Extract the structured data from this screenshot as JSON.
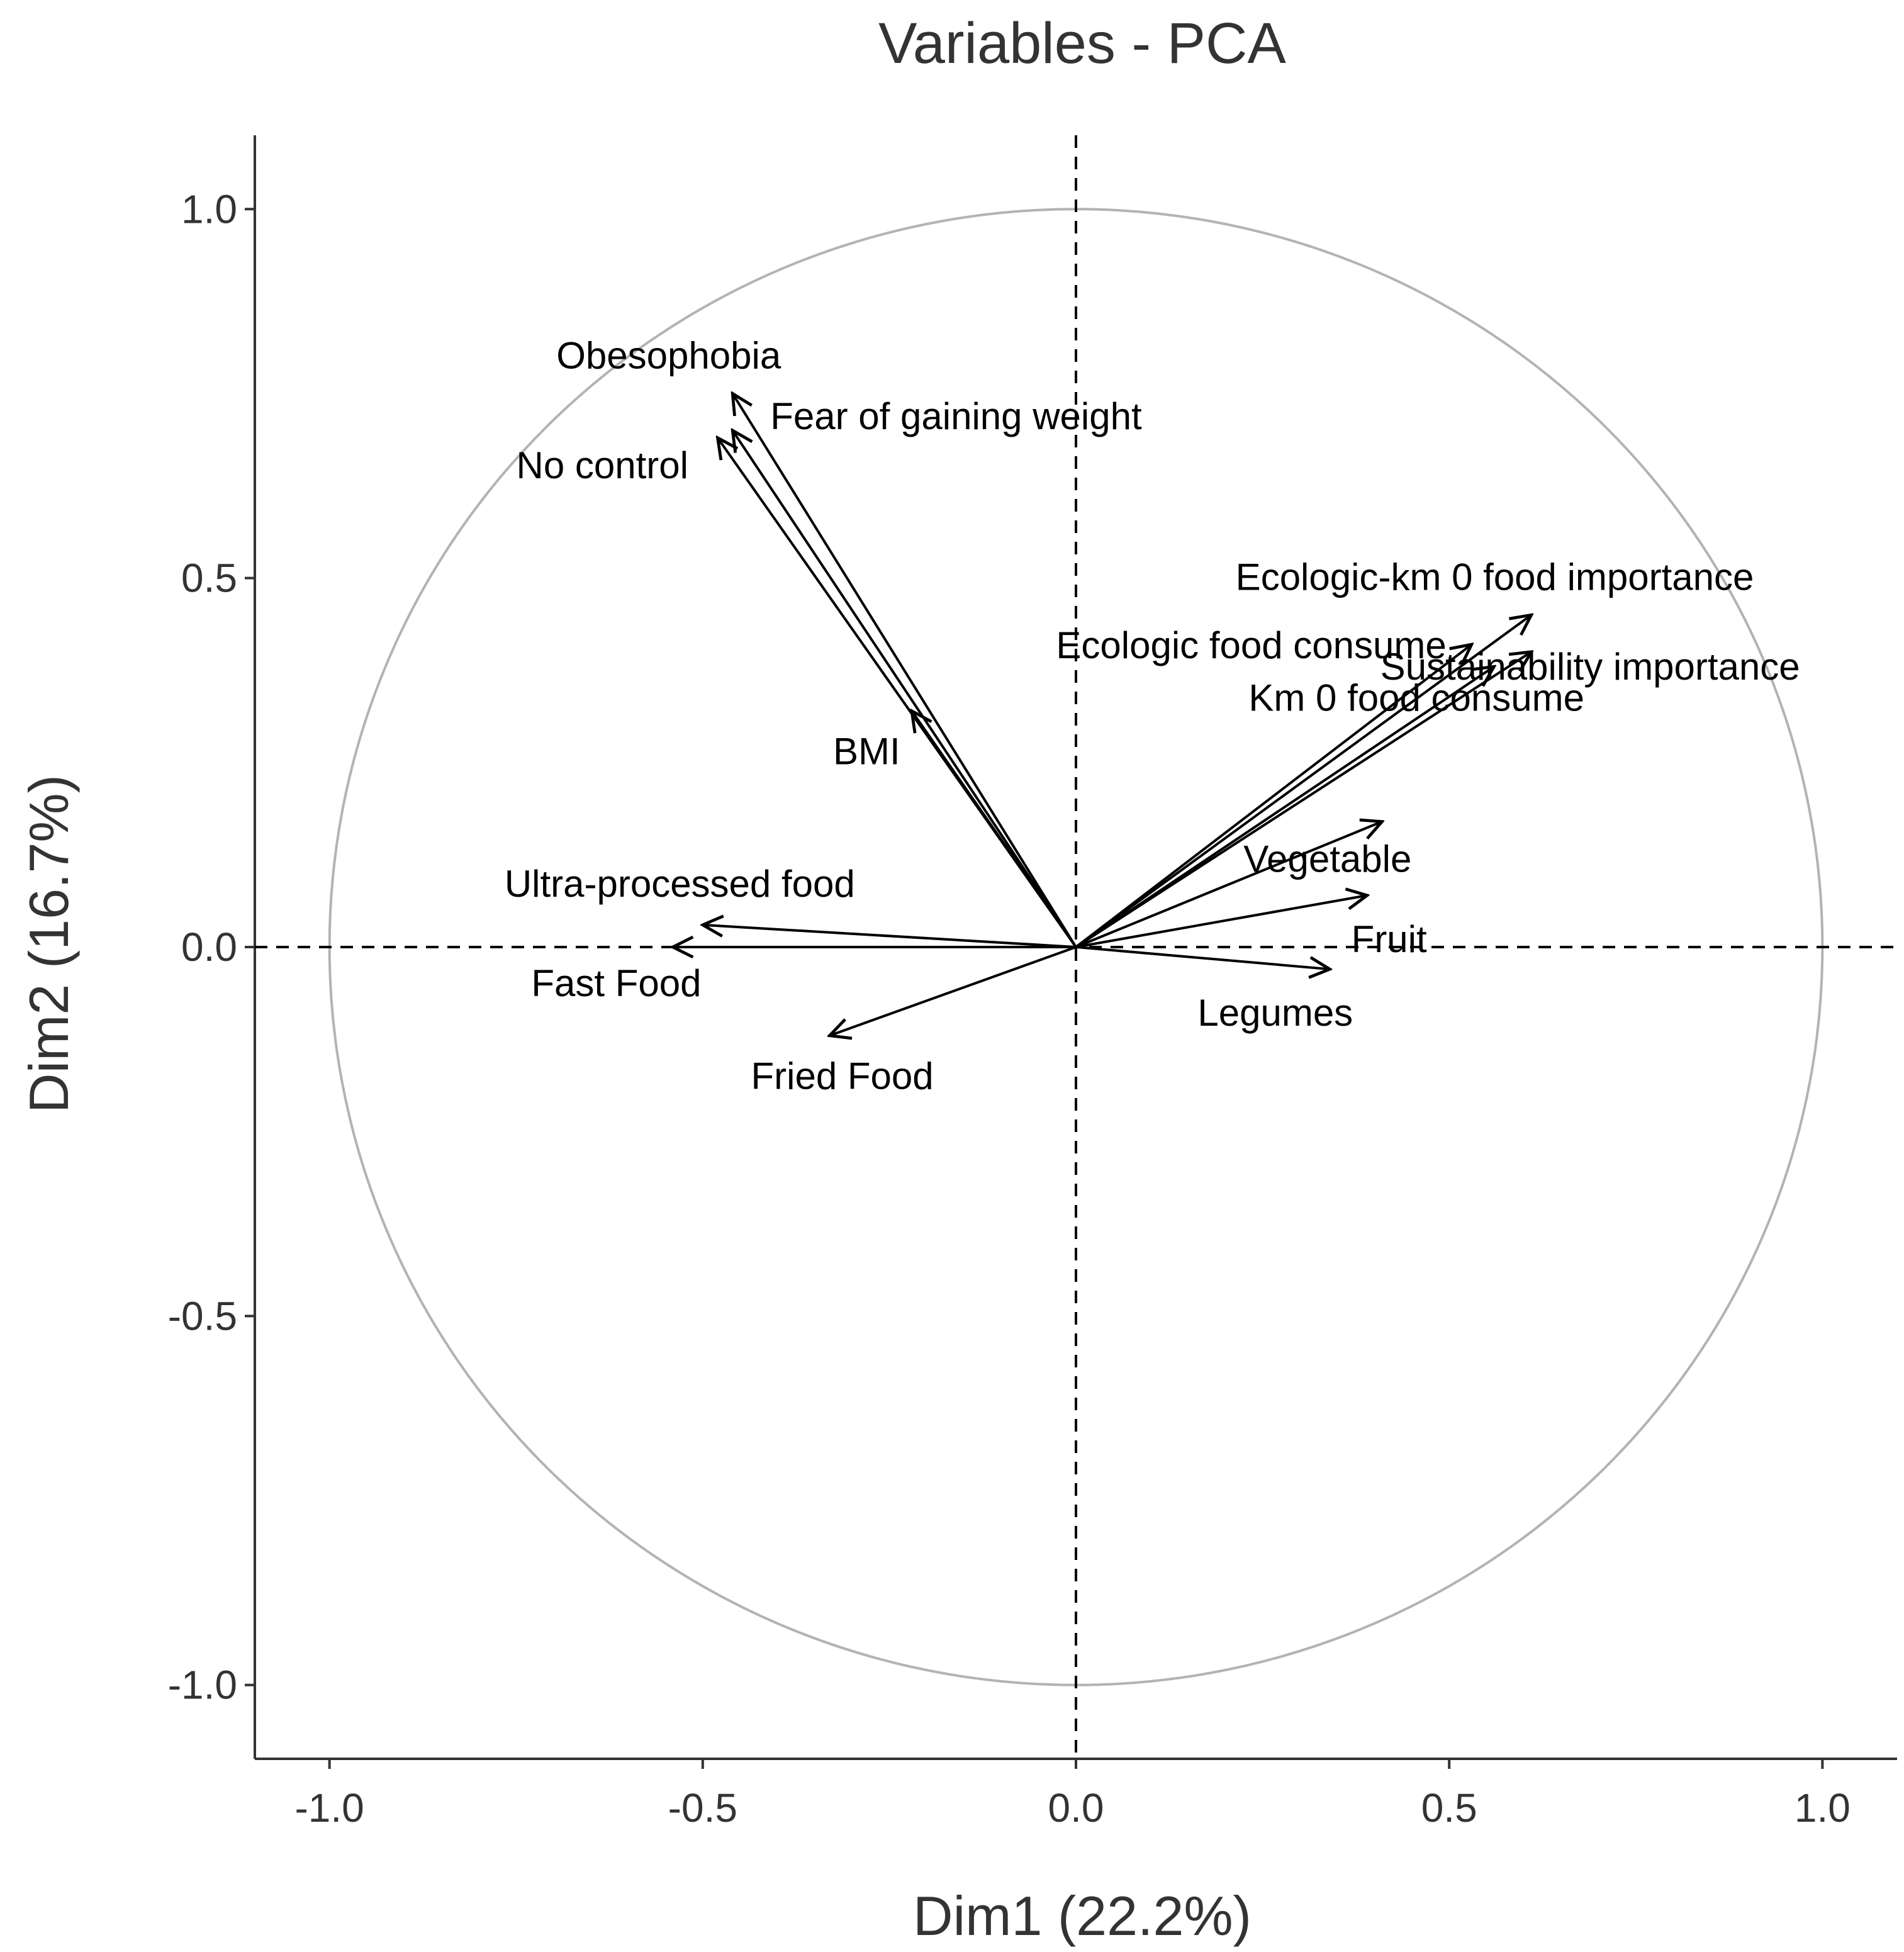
{
  "colors": {
    "background": "#ffffff",
    "circle": "#b3b3b3",
    "arrows": "#000000",
    "text": "#333333"
  },
  "chart_data": {
    "type": "pca-variable-correlation-circle",
    "title": "Variables - PCA",
    "xlabel": "Dim1 (22.2%)",
    "ylabel": "Dim2 (16.7%)",
    "xlim": [
      -1.1,
      1.1
    ],
    "ylim": [
      -1.1,
      1.1
    ],
    "xticks": [
      -1.0,
      -0.5,
      0.0,
      0.5,
      1.0
    ],
    "yticks": [
      -1.0,
      -0.5,
      0.0,
      0.5,
      1.0
    ],
    "xtick_labels": [
      "-1.0",
      "-0.5",
      "0.0",
      "0.5",
      "1.0"
    ],
    "ytick_labels": [
      "-1.0",
      "-0.5",
      "0.0",
      "0.5",
      "1.0"
    ],
    "grid": false,
    "unit_circle": true,
    "reference_lines": {
      "x": 0,
      "y": 0,
      "style": "dashed"
    },
    "variables": [
      {
        "name": "Obesophobia",
        "x": -0.46,
        "y": 0.75
      },
      {
        "name": "Fear of gaining weight",
        "x": -0.46,
        "y": 0.7
      },
      {
        "name": "No control",
        "x": -0.48,
        "y": 0.69
      },
      {
        "name": "BMI",
        "x": -0.22,
        "y": 0.32
      },
      {
        "name": "Ecologic-km 0 food importance",
        "x": 0.61,
        "y": 0.45
      },
      {
        "name": "Ecologic food consume",
        "x": 0.53,
        "y": 0.41
      },
      {
        "name": "Sustainability importance",
        "x": 0.61,
        "y": 0.4
      },
      {
        "name": "Km 0 food consume",
        "x": 0.56,
        "y": 0.38
      },
      {
        "name": "Vegetable",
        "x": 0.41,
        "y": 0.17
      },
      {
        "name": "Fruit",
        "x": 0.39,
        "y": 0.07
      },
      {
        "name": "Legumes",
        "x": 0.34,
        "y": -0.03
      },
      {
        "name": "Ultra-processed food",
        "x": -0.5,
        "y": 0.03
      },
      {
        "name": "Fast Food",
        "x": -0.54,
        "y": 0.0
      },
      {
        "name": "Fried Food",
        "x": -0.33,
        "y": -0.12
      }
    ]
  }
}
